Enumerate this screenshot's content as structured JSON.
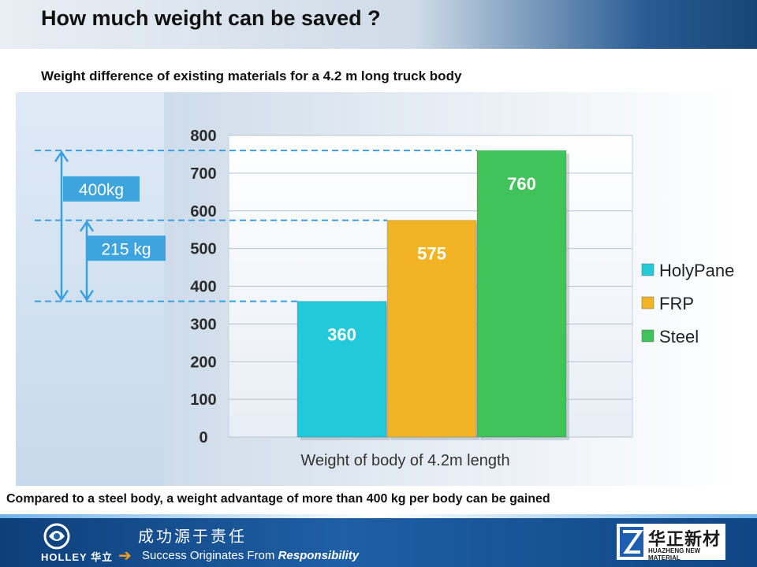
{
  "slide": {
    "title": "How much weight can be saved ?",
    "subtitle": "Weight difference of existing materials for a 4.2 m long truck body",
    "conclusion": "Compared to a steel body, a weight advantage of more than 400 kg per body can be gained"
  },
  "chart_data": {
    "type": "bar",
    "categories": [
      "HolyPane",
      "FRP",
      "Steel"
    ],
    "values": [
      360,
      575,
      760
    ],
    "data_labels": [
      "360",
      "575",
      "760"
    ],
    "colors": [
      "#22c9d9",
      "#f2b324",
      "#3fc35a"
    ],
    "legend": [
      "HolyPane",
      "FRP",
      "Steel"
    ],
    "legend_placement": "right",
    "xlabel": "Weight of body of 4.2m length",
    "ylim": [
      0,
      800
    ],
    "yticks": [
      0,
      100,
      200,
      300,
      400,
      500,
      600,
      700,
      800
    ],
    "grid": true,
    "annotations": [
      {
        "label": "400kg",
        "from": 360,
        "to": 760
      },
      {
        "label": "215 kg",
        "from": 360,
        "to": 575
      }
    ]
  },
  "footer": {
    "company_text": "HOLLEY 华立",
    "slogan_cn": "成功源于责任",
    "slogan_en": "Success Originates From",
    "slogan_en_emphasis": "Responsibility",
    "partner_cn": "华正新材",
    "partner_en": "HUAZHENG NEW MATERIAL"
  }
}
